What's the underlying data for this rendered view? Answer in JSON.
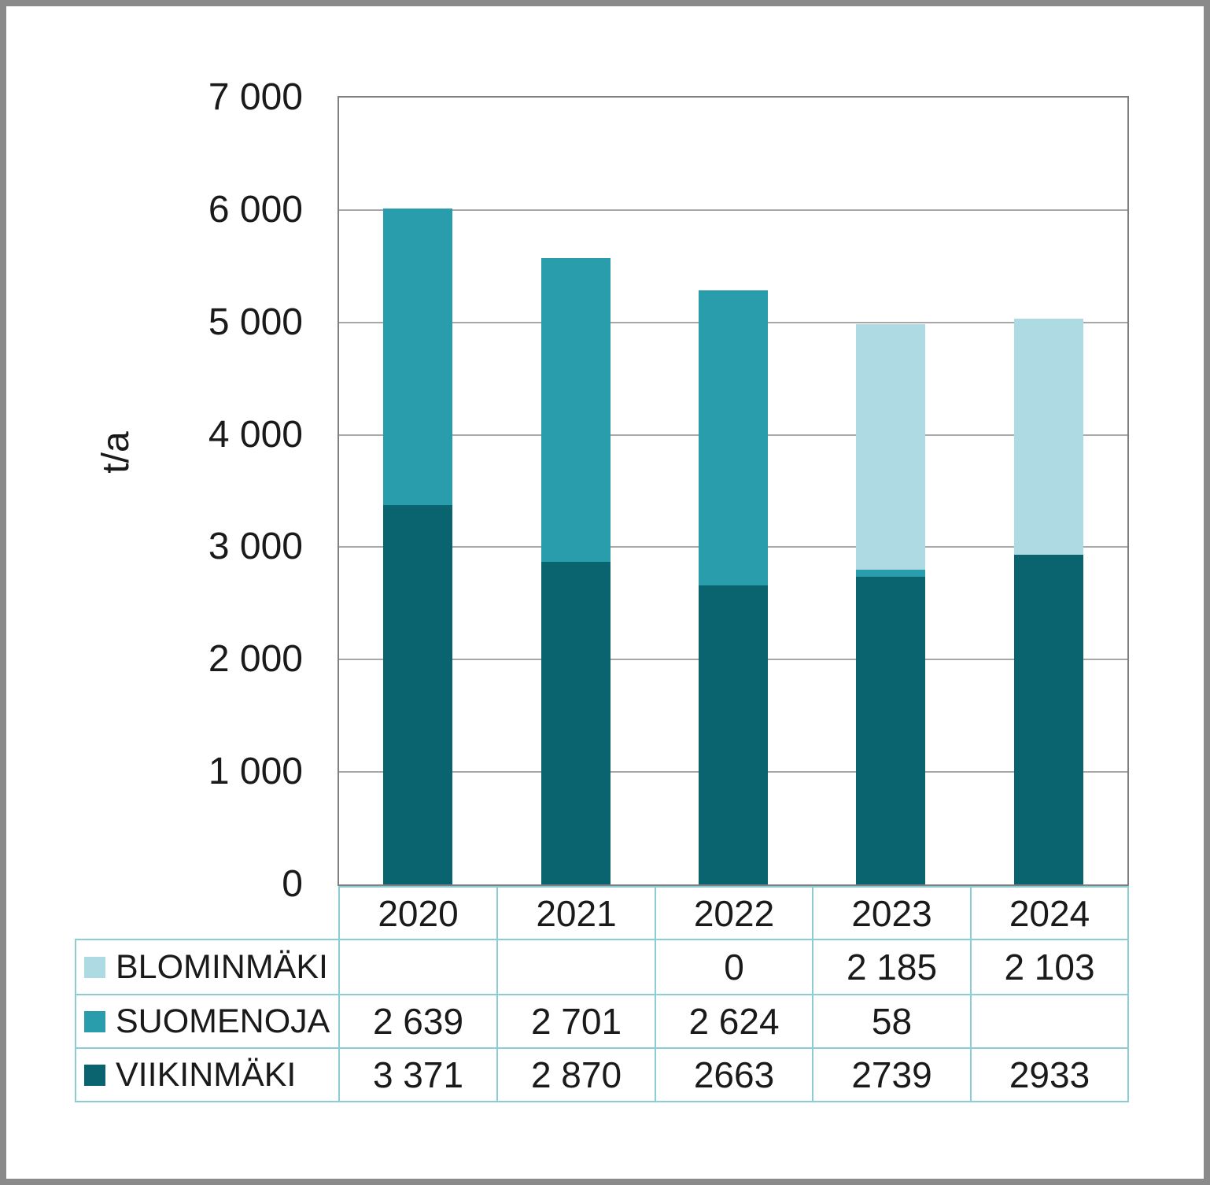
{
  "chart_data": {
    "type": "bar",
    "stacked": true,
    "title": "",
    "categories": [
      "2020",
      "2021",
      "2022",
      "2023",
      "2024"
    ],
    "series": [
      {
        "name": "BLOMINMÄKI",
        "color": "#aedae4",
        "values": [
          null,
          null,
          0,
          2185,
          2103
        ]
      },
      {
        "name": "SUOMENOJA",
        "color": "#2a9dad",
        "values": [
          2639,
          2701,
          2624,
          58,
          null
        ]
      },
      {
        "name": "VIIKINMÄKI",
        "color": "#0a6470",
        "values": [
          3371,
          2870,
          2663,
          2739,
          2933
        ]
      }
    ],
    "stack_order_bottom_to_top": [
      "VIIKINMÄKI",
      "SUOMENOJA",
      "BLOMINMÄKI"
    ],
    "xlabel": "",
    "ylabel": "t/a",
    "ylim": [
      0,
      7000
    ],
    "y_tick_interval": 1000,
    "y_tick_labels": [
      "0",
      "1 000",
      "2 000",
      "3 000",
      "4 000",
      "5 000",
      "6 000",
      "7 000"
    ],
    "grid": "horizontal",
    "legend_position": "table-rows-left"
  },
  "data_table": {
    "years": [
      "2020",
      "2021",
      "2022",
      "2023",
      "2024"
    ],
    "rows": [
      {
        "label": "BLOMINMÄKI",
        "swatch_color": "#aedae4",
        "cells": [
          "",
          "",
          "0",
          "2 185",
          "2 103"
        ]
      },
      {
        "label": "SUOMENOJA",
        "swatch_color": "#2a9dad",
        "cells": [
          "2 639",
          "2 701",
          "2 624",
          "58",
          ""
        ]
      },
      {
        "label": "VIIKINMÄKI",
        "swatch_color": "#0a6470",
        "cells": [
          "3 371",
          "2 870",
          "2663",
          "2739",
          "2933"
        ]
      }
    ]
  },
  "colors": {
    "blominmaki": "#aedae4",
    "suomenoja": "#2a9dad",
    "viikinmaki": "#0a6470",
    "plot_border": "#7f7f7f",
    "gridline": "#a8a8a8",
    "table_border": "#8bcdd2",
    "outer_frame": "#8a8a8a",
    "text": "#1a1a1a"
  }
}
